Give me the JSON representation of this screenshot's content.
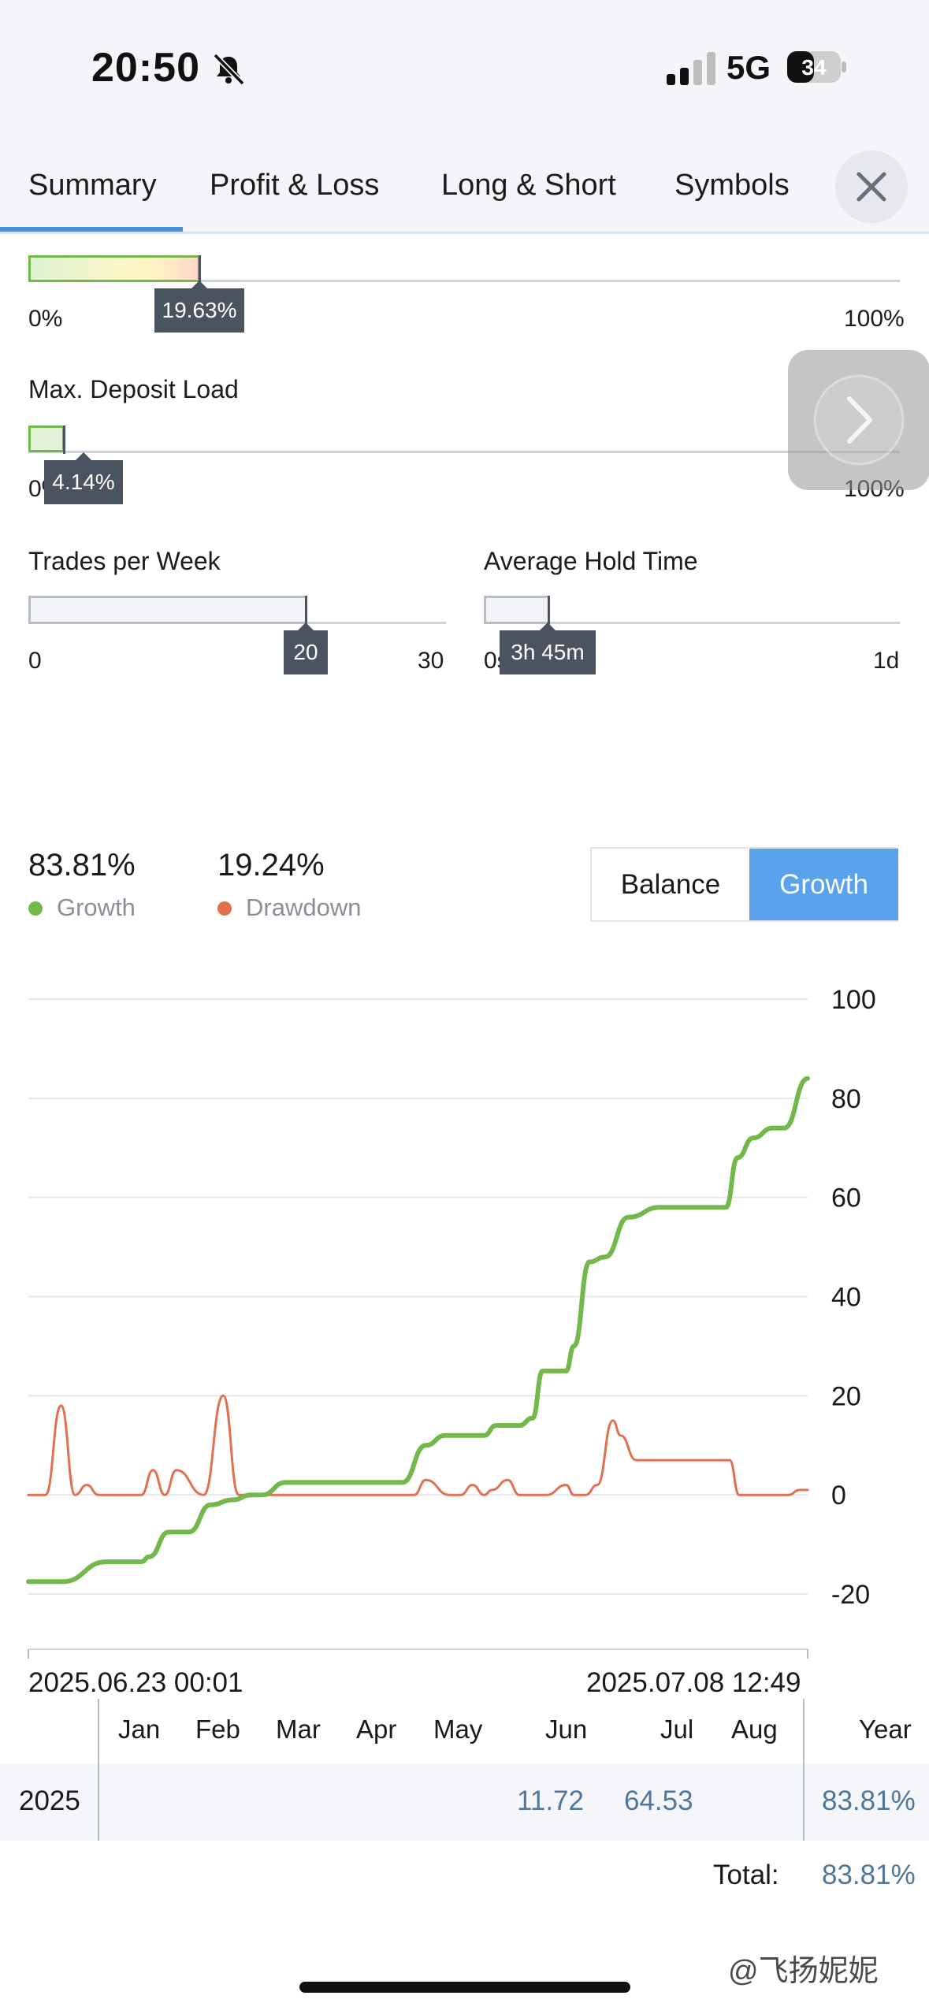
{
  "status_bar": {
    "time": "20:50",
    "network": "5G",
    "battery": "34"
  },
  "tabs": [
    {
      "label": "Summary",
      "active": true
    },
    {
      "label": "Profit & Loss",
      "active": false
    },
    {
      "label": "Long & Short",
      "active": false
    },
    {
      "label": "Symbols",
      "active": false
    }
  ],
  "gauges": {
    "top": {
      "value_label": "19.63%",
      "min_label": "0%",
      "max_label": "100%",
      "fraction": 0.1963
    },
    "deposit_load": {
      "title": "Max. Deposit Load",
      "value_label": "4.14%",
      "min_label": "0%",
      "max_label": "100%",
      "fraction": 0.0414
    },
    "trades_per_week": {
      "title": "Trades per Week",
      "value_label": "20",
      "min_label": "0",
      "max_label": "30",
      "value": 20,
      "max": 30
    },
    "hold_time": {
      "title": "Average Hold Time",
      "value_label": "3h 45m",
      "min_label": "0s",
      "max_label": "1d",
      "fraction": 0.156
    }
  },
  "stats": {
    "growth": {
      "value": "83.81%",
      "label": "Growth",
      "color": "#72b84a"
    },
    "drawdown": {
      "value": "19.24%",
      "label": "Drawdown",
      "color": "#e07050"
    }
  },
  "toggle": {
    "balance_label": "Balance",
    "growth_label": "Growth",
    "active": "growth",
    "active_color": "#5aa2ec"
  },
  "chart_data": {
    "type": "line",
    "x_start_label": "2025.06.23 00:01",
    "x_end_label": "2025.07.08 12:49",
    "ylim": [
      -20,
      100
    ],
    "yticks": [
      100,
      80,
      60,
      40,
      20,
      0,
      -20
    ],
    "grid": true,
    "series": [
      {
        "name": "Growth",
        "color": "#72b84a",
        "x": [
          0,
          0.044,
          0.1,
          0.145,
          0.155,
          0.18,
          0.206,
          0.234,
          0.262,
          0.286,
          0.3,
          0.33,
          0.35,
          0.42,
          0.46,
          0.48,
          0.51,
          0.535,
          0.55,
          0.585,
          0.6,
          0.615,
          0.63,
          0.647,
          0.66,
          0.675,
          0.69,
          0.7,
          0.72,
          0.74,
          0.77,
          0.81,
          0.88,
          0.895,
          0.91,
          0.93,
          0.955,
          0.97,
          1.0
        ],
        "values": [
          -17.5,
          -17.5,
          -13.5,
          -13.5,
          -12.5,
          -7.5,
          -7.5,
          -2,
          -1,
          0,
          0,
          2.5,
          2.5,
          2.5,
          2.5,
          2.5,
          10,
          12,
          12,
          12,
          14,
          14,
          14,
          15.5,
          25,
          25,
          25,
          30,
          47,
          48,
          56,
          58,
          58,
          58,
          68,
          72,
          74,
          74,
          84
        ]
      },
      {
        "name": "Drawdown",
        "color": "#e07050",
        "x": [
          0,
          0.022,
          0.042,
          0.06,
          0.075,
          0.09,
          0.145,
          0.16,
          0.175,
          0.19,
          0.225,
          0.25,
          0.27,
          0.29,
          0.3,
          0.46,
          0.475,
          0.495,
          0.51,
          0.54,
          0.555,
          0.57,
          0.585,
          0.595,
          0.615,
          0.63,
          0.665,
          0.69,
          0.7,
          0.715,
          0.73,
          0.75,
          0.76,
          0.78,
          0.81,
          0.84,
          0.9,
          0.912,
          0.93,
          0.975,
          0.99,
          1.0
        ],
        "values": [
          0,
          0,
          18,
          0,
          2,
          0,
          0,
          5,
          0,
          5,
          0,
          20,
          0,
          0,
          0,
          0,
          0,
          0,
          3,
          0,
          0,
          2,
          0,
          1,
          3,
          0,
          0,
          2,
          0,
          0,
          2,
          15,
          12,
          7,
          7,
          7,
          7,
          0,
          0,
          0,
          1,
          1
        ]
      }
    ]
  },
  "monthly": {
    "months": [
      "Jan",
      "Feb",
      "Mar",
      "Apr",
      "May",
      "Jun",
      "Jul",
      "Aug"
    ],
    "year_header": "Year",
    "row": {
      "year": "2025",
      "jun": "11.72",
      "jul": "64.53",
      "total": "83.81%"
    },
    "total_label": "Total:",
    "total_value": "83.81%"
  },
  "watermark": "@飞扬妮妮"
}
